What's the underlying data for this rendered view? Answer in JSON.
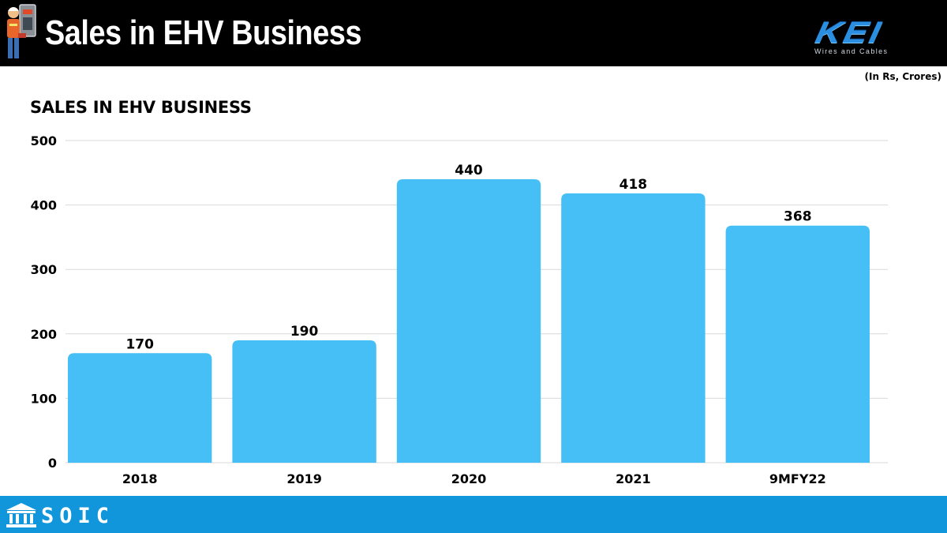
{
  "header": {
    "title": "Sales in EHV Business",
    "logo_text": "KEI",
    "logo_subtext": "Wires and Cables"
  },
  "unit_note": "(In Rs, Crores)",
  "footer": {
    "brand": "SOIC"
  },
  "colors": {
    "bar": "#45bff5",
    "header_bg": "#000000",
    "footer_bg": "#1296db",
    "grid": "#d9d9d9"
  },
  "chart_data": {
    "type": "bar",
    "title": "SALES IN EHV BUSINESS",
    "categories": [
      "2018",
      "2019",
      "2020",
      "2021",
      "9MFY22"
    ],
    "values": [
      170,
      190,
      440,
      418,
      368
    ],
    "ylim": [
      0,
      500
    ],
    "yticks": [
      0,
      100,
      200,
      300,
      400,
      500
    ],
    "xlabel": "",
    "ylabel": "",
    "grid": true,
    "data_labels": true
  }
}
